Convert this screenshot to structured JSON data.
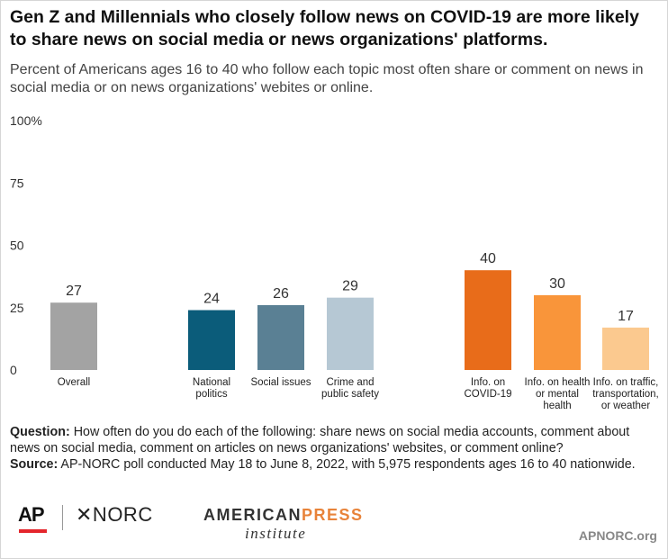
{
  "title": "Gen Z and Millennials who closely follow news on COVID-19 are more likely to share news on social media or news organizations' platforms.",
  "subtitle": "Percent of Americans ages 16 to 40 who follow each topic most often share or comment on news in social media or on news organizations' webites or online.",
  "chart_data": {
    "type": "bar",
    "title": "",
    "xlabel": "",
    "ylabel": "",
    "ylim": [
      0,
      100
    ],
    "yticks": [
      "0",
      "25",
      "50",
      "75",
      "100%"
    ],
    "grid": false,
    "bars": [
      {
        "label": [
          "Overall"
        ],
        "value": 27,
        "color": "#a3a3a3",
        "group": 0
      },
      {
        "label": [
          "National",
          "politics"
        ],
        "value": 24,
        "color": "#0b5c7a",
        "group": 1
      },
      {
        "label": [
          "Social issues"
        ],
        "value": 26,
        "color": "#5a8094",
        "group": 1
      },
      {
        "label": [
          "Crime and",
          "public safety"
        ],
        "value": 29,
        "color": "#b6c8d4",
        "group": 1
      },
      {
        "label": [
          "Info. on",
          "COVID-19"
        ],
        "value": 40,
        "color": "#e86c1a",
        "group": 2
      },
      {
        "label": [
          "Info. on health",
          "or mental",
          "health"
        ],
        "value": 30,
        "color": "#f9953a",
        "group": 2
      },
      {
        "label": [
          "Info. on traffic,",
          "transportation,",
          "or weather"
        ],
        "value": 17,
        "color": "#fbc98f",
        "group": 2
      }
    ]
  },
  "notes": {
    "question_label": "Question:",
    "question_text": " How often do you do each of the following: share news on social media accounts, comment about news on social media, comment on articles on news organizations' websites, or comment online?",
    "source_label": "Source:",
    "source_text": " AP-NORC poll conducted May 18 to June 8, 2022, with 5,975 respondents ages 16 to 40 nationwide."
  },
  "logos": {
    "ap": "AP",
    "norc": "✕NORC",
    "api_a": "AMERICAN",
    "api_b": "PRESS",
    "api_sub": "institute",
    "site": "APNORC.org"
  }
}
